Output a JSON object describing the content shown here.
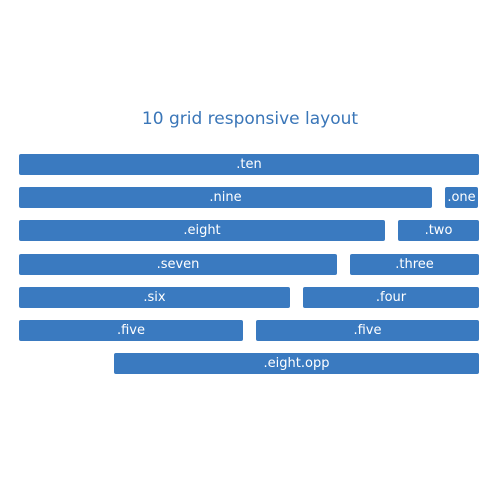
{
  "title": "10 grid responsive layout",
  "cells": {
    "ten": ".ten",
    "nine": ".nine",
    "one": ".one",
    "eight": ".eight",
    "two": ".two",
    "seven": ".seven",
    "three": ".three",
    "six": ".six",
    "four": ".four",
    "five_a": ".five",
    "five_b": ".five",
    "eight_opp": ".eight.opp"
  },
  "colors": {
    "title": "#3a76b8",
    "cell_bg": "#3a7ac0",
    "cell_text": "#ffffff",
    "page_bg": "#ffffff"
  }
}
